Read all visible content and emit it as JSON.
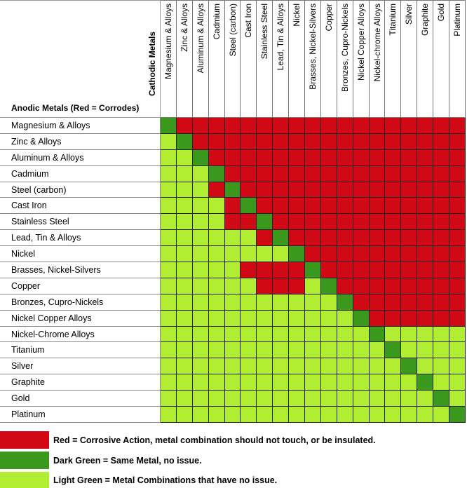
{
  "chart_data": {
    "type": "heatmap",
    "title": "",
    "xlabel": "Cathodic Metals",
    "ylabel": "Anodic Metals (Red = Corrodes)",
    "columns": [
      "Magnesium & Alloys",
      "Zinc & Alloys",
      "Aluminum & Alloys",
      "Cadmium",
      "Steel (carbon)",
      "Cast Iron",
      "Stainless Steel",
      "Lead, Tin & Alloys",
      "Nickel",
      "Brasses, Nickel-Silvers",
      "Copper",
      "Bronzes, Cupro-Nickels",
      "Nickel Copper Alloys",
      "Nickel-chrome Alloys",
      "Titanium",
      "Silver",
      "Graphite",
      "Gold",
      "Platinum"
    ],
    "rows": [
      "Magnesium & Alloys",
      "Zinc & Alloys",
      "Aluminum & Alloys",
      "Cadmium",
      "Steel (carbon)",
      "Cast Iron",
      "Stainless Steel",
      "Lead, Tin & Alloys",
      "Nickel",
      "Brasses, Nickel-Silvers",
      "Copper",
      "Bronzes, Cupro-Nickels",
      "Nickel Copper Alloys",
      "Nickel-Chrome Alloys",
      "Titanium",
      "Silver",
      "Graphite",
      "Gold",
      "Platinum"
    ],
    "matrix": [
      "DRRRRRRRRRRRRRRRRRR",
      "LDRRRRRRRRRRRRRRRRR",
      "LLDRRRRRRRRRRRRRRRR",
      "LLLDRRRRRRRRRRRRRRR",
      "LLLRDRRRRRRRRRRRRRR",
      "LLLLRDRRRRRRRRRRRRR",
      "LLLLRRDRRRRRRRRRRRR",
      "LLLLLLRDRRRRRRRRRRR",
      "LLLLLLLLDRRRRRRRRRR",
      "LLLLLRRRRDRRRRRRRRR",
      "LLLLLLRRRLDRRRRRRRR",
      "LLLLLLLLLLLDRRRRRRR",
      "LLLLLLLLLLLLDRRRRRR",
      "LLLLLLLLLLLLLDLLLLL",
      "LLLLLLLLLLLLLLDLLLL",
      "LLLLLLLLLLLLLLLDLLL",
      "LLLLLLLLLLLLLLLLDLL",
      "LLLLLLLLLLLLLLLLLDL",
      "LLLLLLLLLLLLLLLLLLD"
    ],
    "colors": {
      "R": "#d00915",
      "D": "#3a981c",
      "L": "#b1ee32"
    }
  },
  "legend": [
    {
      "key": "R",
      "label": "Red = Corrosive Action, metal combination should not touch, or be insulated."
    },
    {
      "key": "D",
      "label": "Dark Green = Same Metal, no issue."
    },
    {
      "key": "L",
      "label": "Light Green = Metal Combinations that have no issue."
    }
  ]
}
